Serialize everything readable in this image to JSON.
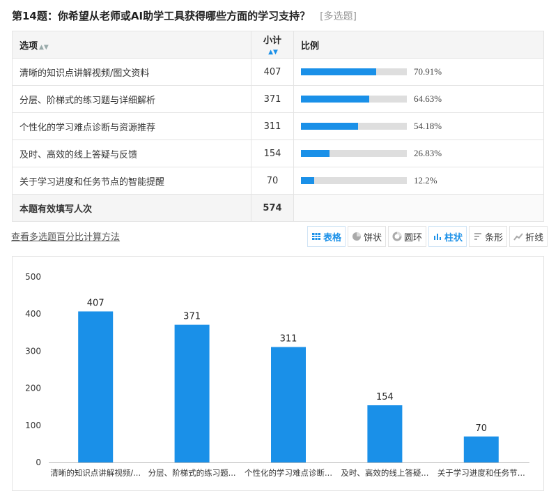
{
  "question": {
    "title": "第14题：你希望从老师或AI助学工具获得哪些方面的学习支持？",
    "tag": "[多选题]"
  },
  "table": {
    "headers": {
      "option": "选项",
      "count": "小计",
      "ratio": "比例"
    },
    "rows": [
      {
        "label": "清晰的知识点讲解视频/图文资料",
        "count": "407",
        "pct": "70.91%",
        "value": 70.91
      },
      {
        "label": "分层、阶梯式的练习题与详细解析",
        "count": "371",
        "pct": "64.63%",
        "value": 64.63
      },
      {
        "label": "个性化的学习难点诊断与资源推荐",
        "count": "311",
        "pct": "54.18%",
        "value": 54.18
      },
      {
        "label": "及时、高效的线上答疑与反馈",
        "count": "154",
        "pct": "26.83%",
        "value": 26.83
      },
      {
        "label": "关于学习进度和任务节点的智能提醒",
        "count": "70",
        "pct": "12.2%",
        "value": 12.2
      }
    ],
    "total_label": "本题有效填写人次",
    "total_count": "574"
  },
  "calc_link": "查看多选题百分比计算方法",
  "views": [
    {
      "label": "表格",
      "icon": "table-icon",
      "active": true
    },
    {
      "label": "饼状",
      "icon": "pie-icon",
      "active": false
    },
    {
      "label": "圆环",
      "icon": "ring-icon",
      "active": false
    },
    {
      "label": "柱状",
      "icon": "bar-chart-icon",
      "active": true
    },
    {
      "label": "条形",
      "icon": "hbar-icon",
      "active": false
    },
    {
      "label": "折线",
      "icon": "line-icon",
      "active": false
    }
  ],
  "colors": {
    "accent": "#1a90e8",
    "bar_bg": "#dedede"
  },
  "chart_data": {
    "type": "bar",
    "categories": [
      "清晰的知识点讲解视频/...",
      "分层、阶梯式的练习题...",
      "个性化的学习难点诊断...",
      "及时、高效的线上答疑...",
      "关于学习进度和任务节..."
    ],
    "values": [
      407,
      371,
      311,
      154,
      70
    ],
    "yticks": [
      "0",
      "100",
      "200",
      "300",
      "400",
      "500"
    ],
    "ylim": [
      0,
      500
    ],
    "grid": false,
    "data_labels": true
  }
}
